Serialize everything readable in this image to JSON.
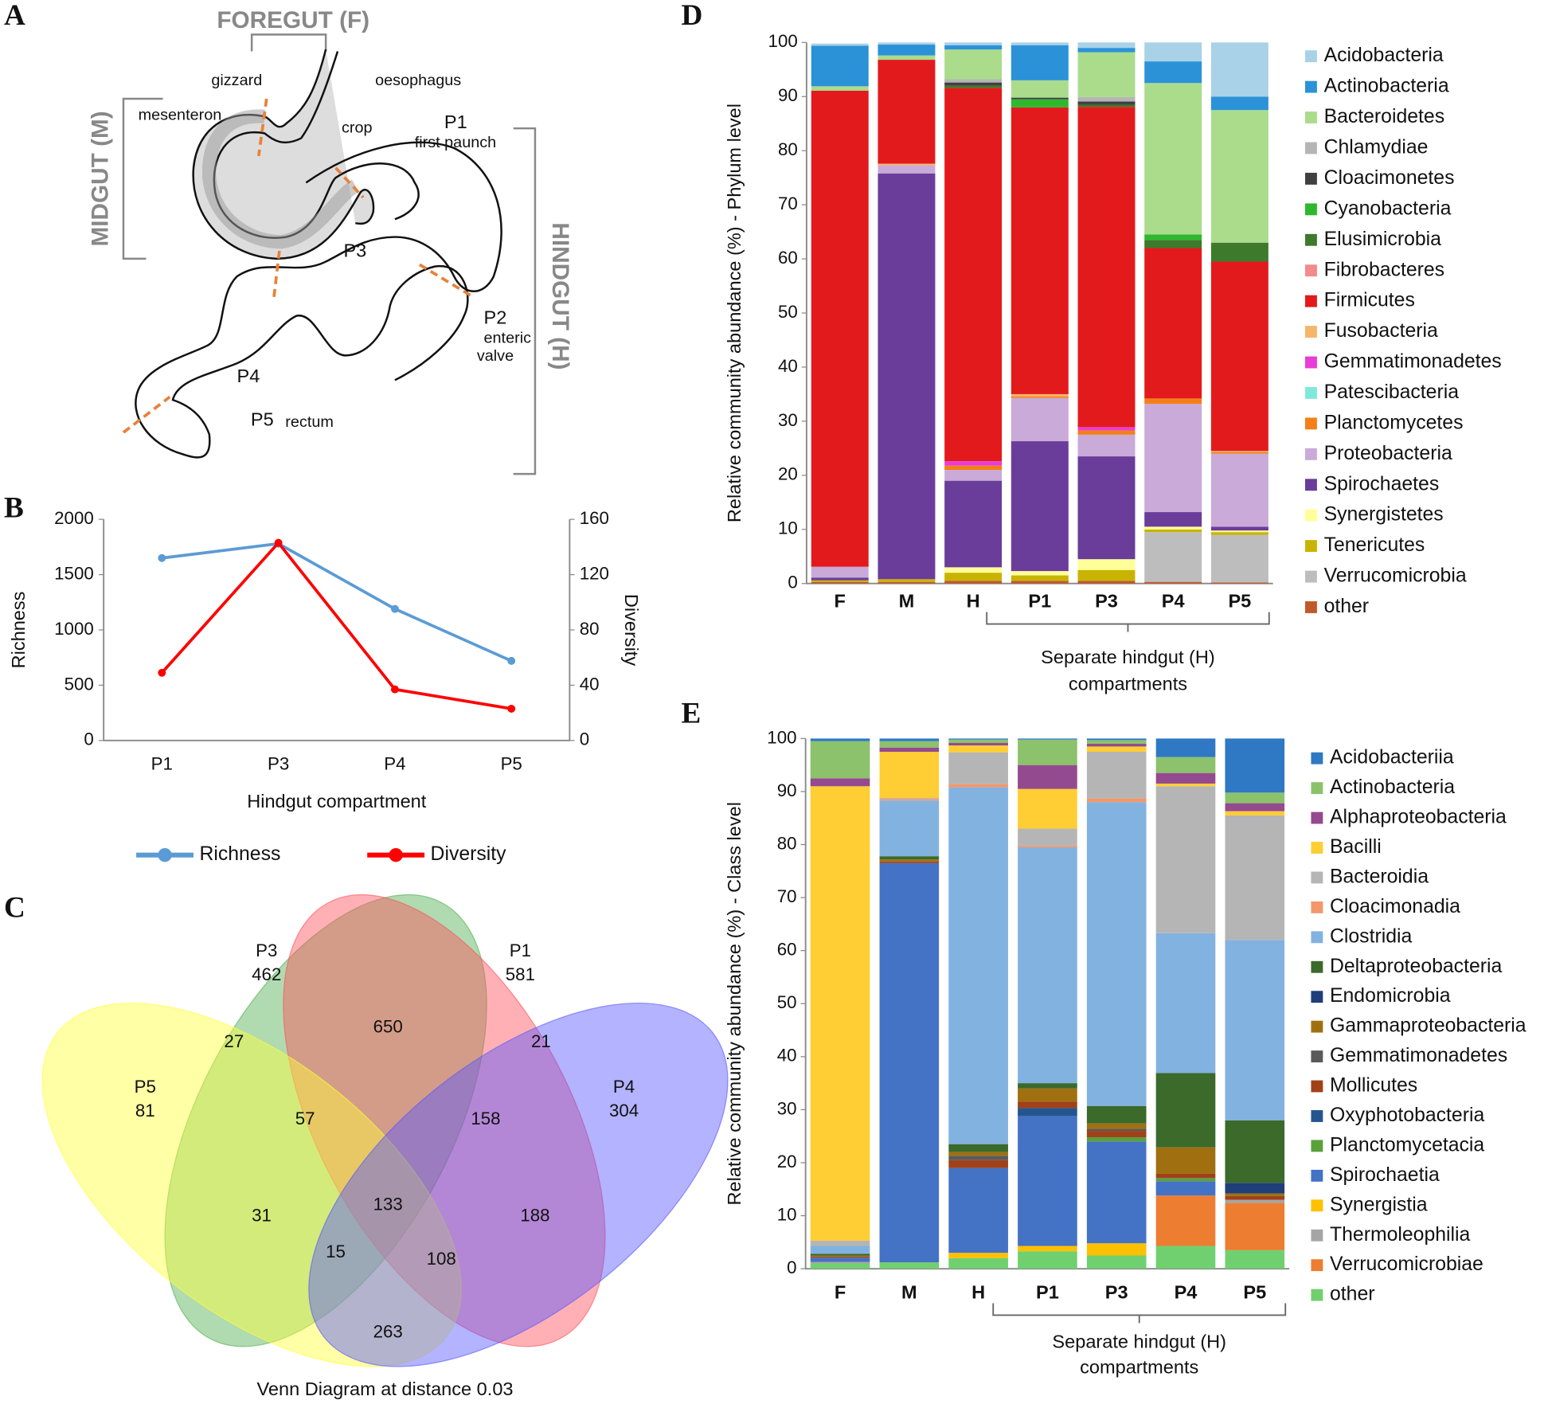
{
  "panel_labels": [
    "A",
    "B",
    "C",
    "D",
    "E"
  ],
  "diagram": {
    "labels": [
      "FOREGUT (F)",
      "MIDGUT (M)",
      "HINDGUT (H)",
      "gizzard",
      "oesophagus",
      "mesenteron",
      "crop",
      "P1",
      "first paunch",
      "P3",
      "P2",
      "enteric",
      "valve",
      "P4",
      "P5",
      "rectum"
    ]
  },
  "chart_data": [
    {
      "type": "line",
      "categories": [
        "P1",
        "P3",
        "P4",
        "P5"
      ],
      "x_label": "Hindgut compartment",
      "y_label": "Richness",
      "y2_label": "Diversity",
      "ylim": [
        0,
        2000
      ],
      "yticks": [
        0,
        500,
        1000,
        1500,
        2000
      ],
      "y2lim": [
        0,
        160
      ],
      "y2ticks": [
        0,
        40,
        80,
        120,
        160
      ],
      "series": [
        {
          "name": "Richness",
          "color": "#5b9bd5",
          "values": [
            1650,
            1780,
            1190,
            720
          ]
        },
        {
          "name": "Diversity",
          "color": "#ff0000",
          "axis": "y2",
          "values": [
            49,
            143,
            37,
            23
          ]
        }
      ]
    },
    {
      "type": "venn",
      "title": "Venn Diagram at distance 0.03",
      "sets": [
        {
          "name": "P3",
          "value": 462,
          "color": "#4fae4f"
        },
        {
          "name": "P1",
          "value": 581,
          "color": "#ff4f5a"
        },
        {
          "name": "P5",
          "value": 81,
          "color": "#ffff3a"
        },
        {
          "name": "P4",
          "value": 304,
          "color": "#5656ff"
        }
      ],
      "regions": [
        27,
        650,
        21,
        57,
        158,
        31,
        133,
        188,
        15,
        108,
        263
      ]
    },
    {
      "type": "stacked-bar",
      "y_label": "Relative community abundance (%) - Phylum level",
      "group_label": [
        "Separate hindgut (H)",
        "compartments"
      ],
      "categories": [
        "F",
        "M",
        "H",
        "P1",
        "P3",
        "P4",
        "P5"
      ],
      "ylim": [
        0,
        100
      ],
      "yticks": [
        0,
        10,
        20,
        30,
        40,
        50,
        60,
        70,
        80,
        90,
        100
      ],
      "series": [
        {
          "name": "Acidobacteria",
          "color": "#a9d1e8",
          "values": [
            0.4,
            0.4,
            0.5,
            0.5,
            1,
            3.5,
            10
          ]
        },
        {
          "name": "Actinobacteria",
          "color": "#2b92d8",
          "values": [
            7.5,
            2,
            0.8,
            6.5,
            0.8,
            4,
            2.5
          ]
        },
        {
          "name": "Bacteroidetes",
          "color": "#aadc8c",
          "values": [
            0.8,
            0.8,
            5.5,
            3.2,
            8.3,
            28,
            24.5
          ]
        },
        {
          "name": "Chlamydiae",
          "color": "#b5b5b5",
          "values": [
            0,
            0,
            0.6,
            0,
            0.8,
            0,
            0
          ]
        },
        {
          "name": "Cloacimonetes",
          "color": "#404040",
          "values": [
            0,
            0,
            0.6,
            0.3,
            0.6,
            0,
            0
          ]
        },
        {
          "name": "Cyanobacteria",
          "color": "#2eb82e",
          "values": [
            0,
            0,
            0,
            1.5,
            0,
            1,
            0
          ]
        },
        {
          "name": "Elusimicrobia",
          "color": "#3d7a2c",
          "values": [
            0,
            0,
            0.4,
            0,
            0.4,
            1.5,
            3.5
          ]
        },
        {
          "name": "Fibrobacteres",
          "color": "#f28b8b",
          "values": [
            0,
            0,
            0,
            0,
            0,
            0,
            0
          ]
        },
        {
          "name": "Firmicutes",
          "color": "#e31a1c",
          "values": [
            88,
            19.2,
            69,
            53,
            59.2,
            27.8,
            35
          ]
        },
        {
          "name": "Fusobacteria",
          "color": "#f5b66a",
          "values": [
            0,
            0.3,
            0,
            0.4,
            0,
            0,
            0.2
          ]
        },
        {
          "name": "Gemmatimonadetes",
          "color": "#e93cd8",
          "values": [
            0,
            0,
            0.8,
            0,
            0.6,
            0,
            0
          ]
        },
        {
          "name": "Patescibacteria",
          "color": "#7fe8dc",
          "values": [
            0,
            0,
            0,
            0,
            0,
            0,
            0
          ]
        },
        {
          "name": "Planctomycetes",
          "color": "#f57f17",
          "values": [
            0,
            0,
            0.8,
            0.3,
            0.8,
            1,
            0.3
          ]
        },
        {
          "name": "Proteobacteria",
          "color": "#c9aad9",
          "values": [
            2,
            1.5,
            2,
            8,
            4,
            20,
            13.5
          ]
        },
        {
          "name": "Spirochaetes",
          "color": "#6a3d9a",
          "values": [
            0.5,
            75,
            16,
            24,
            19,
            2.7,
            0.7
          ]
        },
        {
          "name": "Synergistetes",
          "color": "#ffff99",
          "values": [
            0,
            0,
            1,
            0.8,
            2,
            0.5,
            0.3
          ]
        },
        {
          "name": "Tenericutes",
          "color": "#c8b400",
          "values": [
            0.3,
            0.5,
            1.5,
            1,
            2,
            0.5,
            0.5
          ]
        },
        {
          "name": "Verrucomicrobia",
          "color": "#bdbdbd",
          "values": [
            0,
            0,
            0,
            0,
            0,
            9.2,
            8.8
          ]
        },
        {
          "name": "other",
          "color": "#c0582a",
          "values": [
            0.3,
            0.3,
            0.5,
            0.5,
            0.5,
            0.3,
            0.2
          ]
        }
      ]
    },
    {
      "type": "stacked-bar",
      "y_label": "Relative community abundance (%) - Class level",
      "group_label": [
        "Separate hindgut (H)",
        "compartments"
      ],
      "categories": [
        "F",
        "M",
        "H",
        "P1",
        "P3",
        "P4",
        "P5"
      ],
      "ylim": [
        0,
        100
      ],
      "yticks": [
        0,
        10,
        20,
        30,
        40,
        50,
        60,
        70,
        80,
        90,
        100
      ],
      "series": [
        {
          "name": "Acidobacteriia",
          "color": "#2f78c4",
          "values": [
            0.5,
            0.5,
            0.2,
            0.2,
            0.3,
            3.5,
            10.2
          ]
        },
        {
          "name": "Actinobacteria",
          "color": "#8cc26b",
          "values": [
            7,
            1.2,
            0.6,
            4.8,
            0.7,
            3,
            2
          ]
        },
        {
          "name": "Alphaproteobacteria",
          "color": "#944a8f",
          "values": [
            1.5,
            0.8,
            0.5,
            4.5,
            0.5,
            2,
            1.5
          ]
        },
        {
          "name": "Bacilli",
          "color": "#ffcd34",
          "values": [
            85.7,
            8.7,
            1.3,
            7.5,
            1,
            0.5,
            0.8
          ]
        },
        {
          "name": "Bacteroidia",
          "color": "#b5b5b5",
          "values": [
            1,
            0.2,
            6,
            3.2,
            8.8,
            27.7,
            23.5
          ]
        },
        {
          "name": "Cloacimonadia",
          "color": "#f3976b",
          "values": [
            0,
            0.3,
            0.6,
            0.3,
            0.7,
            0,
            0
          ]
        },
        {
          "name": "Clostridia",
          "color": "#82b2e0",
          "values": [
            1.5,
            10.5,
            67.3,
            44.5,
            57.3,
            26.4,
            34
          ]
        },
        {
          "name": "Deltaproteobacteria",
          "color": "#3b6a2a",
          "values": [
            0.3,
            0.6,
            1.5,
            1,
            3.3,
            14,
            11.8
          ]
        },
        {
          "name": "Endomicrobia",
          "color": "#1f3e7a",
          "values": [
            0,
            0,
            0,
            0,
            0,
            0,
            2
          ]
        },
        {
          "name": "Gammaproteobacteria",
          "color": "#a07010",
          "values": [
            0.2,
            0.4,
            0.7,
            2.5,
            1,
            5,
            0.5
          ]
        },
        {
          "name": "Gemmatimonadetes",
          "color": "#5a5a5a",
          "values": [
            0,
            0,
            0.8,
            0,
            0.4,
            0,
            0
          ]
        },
        {
          "name": "Mollicutes",
          "color": "#a0411a",
          "values": [
            0.2,
            0.3,
            1.5,
            1.2,
            1.2,
            0.8,
            0.7
          ]
        },
        {
          "name": "Oxyphotobacteria",
          "color": "#24558f",
          "values": [
            0,
            0,
            0,
            1.5,
            0,
            0,
            0
          ]
        },
        {
          "name": "Planctomycetacia",
          "color": "#5aa03c",
          "values": [
            0,
            0,
            0,
            0,
            0.8,
            0.6,
            0
          ]
        },
        {
          "name": "Spirochaetia",
          "color": "#4472c4",
          "values": [
            0.8,
            75.3,
            16,
            24.5,
            19.2,
            2.7,
            0
          ]
        },
        {
          "name": "Synergistia",
          "color": "#ffc000",
          "values": [
            0,
            0,
            1,
            1,
            2.3,
            0,
            0
          ]
        },
        {
          "name": "Thermoleophilia",
          "color": "#a5a5a5",
          "values": [
            0.3,
            0,
            0,
            0,
            0,
            0,
            0.6
          ]
        },
        {
          "name": "Verrucomicrobiae",
          "color": "#ed7d31",
          "values": [
            0,
            0,
            0,
            0,
            0,
            9.5,
            8.9
          ]
        },
        {
          "name": "other",
          "color": "#70d070",
          "values": [
            1,
            1.2,
            2,
            3.3,
            2.5,
            4.3,
            3.5
          ]
        }
      ]
    }
  ]
}
